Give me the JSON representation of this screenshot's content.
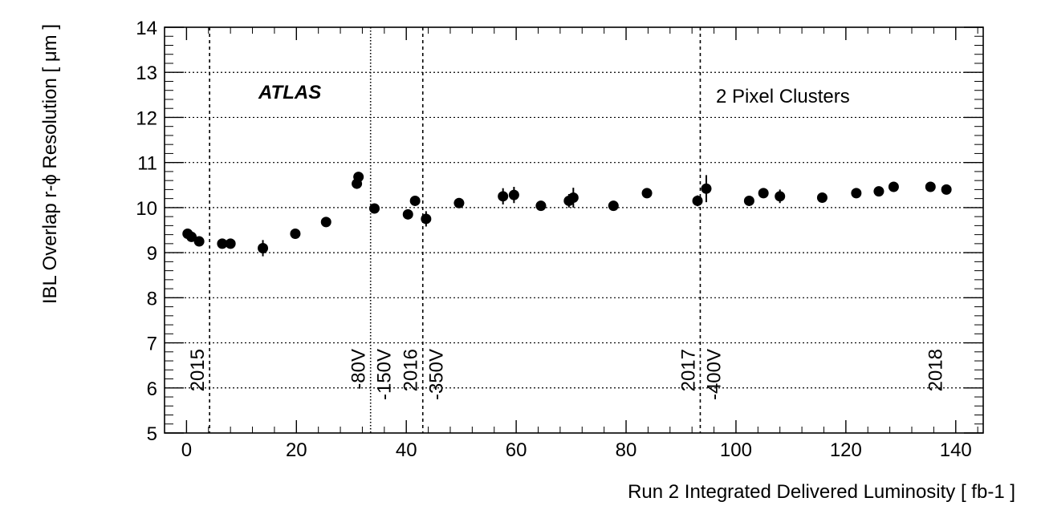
{
  "chart_data": {
    "type": "scatter",
    "xlabel": "Run 2 Integrated Delivered Luminosity [ fb-1 ]",
    "ylabel": "IBL Overlap r-ϕ Resolution [ μm ]",
    "xlim": [
      -4,
      145
    ],
    "ylim": [
      5,
      14
    ],
    "x_ticks": [
      0,
      20,
      40,
      60,
      80,
      100,
      120,
      140
    ],
    "y_ticks": [
      5,
      6,
      7,
      8,
      9,
      10,
      11,
      12,
      13,
      14
    ],
    "grid": "horizontal dotted",
    "annotations": {
      "experiment": "ATLAS",
      "selection": "2 Pixel Clusters"
    },
    "vertical_markers": [
      {
        "x": 4.2,
        "style": "dashed",
        "labels": [
          "2015"
        ]
      },
      {
        "x": 33.5,
        "style": "dotted",
        "labels": [
          "-80V",
          "-150V"
        ]
      },
      {
        "x": 43.0,
        "style": "dashed",
        "labels": [
          "2016",
          "-350V"
        ]
      },
      {
        "x": 93.5,
        "style": "dashed",
        "labels": [
          "2017",
          "-400V"
        ]
      },
      {
        "x": 138.5,
        "style": "none",
        "labels": [
          "2018"
        ]
      }
    ],
    "series": [
      {
        "points": [
          {
            "x": 0.2,
            "y": 9.42,
            "err": 0.05
          },
          {
            "x": 0.9,
            "y": 9.35,
            "err": 0.05
          },
          {
            "x": 2.3,
            "y": 9.25,
            "err": 0.05
          },
          {
            "x": 6.5,
            "y": 9.2,
            "err": 0.05
          },
          {
            "x": 8.0,
            "y": 9.2,
            "err": 0.05
          },
          {
            "x": 13.9,
            "y": 9.1,
            "err": 0.18
          },
          {
            "x": 19.8,
            "y": 9.42,
            "err": 0.05
          },
          {
            "x": 25.4,
            "y": 9.68,
            "err": 0.08
          },
          {
            "x": 31.0,
            "y": 10.53,
            "err": 0.08
          },
          {
            "x": 31.3,
            "y": 10.68,
            "err": 0.08
          },
          {
            "x": 34.2,
            "y": 9.98,
            "err": 0.05
          },
          {
            "x": 40.3,
            "y": 9.85,
            "err": 0.1
          },
          {
            "x": 41.6,
            "y": 10.15,
            "err": 0.1
          },
          {
            "x": 43.6,
            "y": 9.75,
            "err": 0.17
          },
          {
            "x": 49.6,
            "y": 10.1,
            "err": 0.1
          },
          {
            "x": 57.6,
            "y": 10.25,
            "err": 0.18
          },
          {
            "x": 59.6,
            "y": 10.28,
            "err": 0.18
          },
          {
            "x": 64.5,
            "y": 10.04,
            "err": 0.05
          },
          {
            "x": 69.6,
            "y": 10.15,
            "err": 0.15
          },
          {
            "x": 70.4,
            "y": 10.22,
            "err": 0.22
          },
          {
            "x": 77.7,
            "y": 10.04,
            "err": 0.05
          },
          {
            "x": 83.8,
            "y": 10.32,
            "err": 0.05
          },
          {
            "x": 93.0,
            "y": 10.15,
            "err": 0.12
          },
          {
            "x": 94.6,
            "y": 10.42,
            "err": 0.3
          },
          {
            "x": 102.4,
            "y": 10.15,
            "err": 0.1
          },
          {
            "x": 105.0,
            "y": 10.32,
            "err": 0.08
          },
          {
            "x": 108.0,
            "y": 10.25,
            "err": 0.15
          },
          {
            "x": 115.7,
            "y": 10.22,
            "err": 0.05
          },
          {
            "x": 121.9,
            "y": 10.32,
            "err": 0.05
          },
          {
            "x": 126.0,
            "y": 10.36,
            "err": 0.05
          },
          {
            "x": 128.7,
            "y": 10.46,
            "err": 0.05
          },
          {
            "x": 135.4,
            "y": 10.46,
            "err": 0.05
          },
          {
            "x": 138.3,
            "y": 10.4,
            "err": 0.1
          }
        ]
      }
    ]
  }
}
